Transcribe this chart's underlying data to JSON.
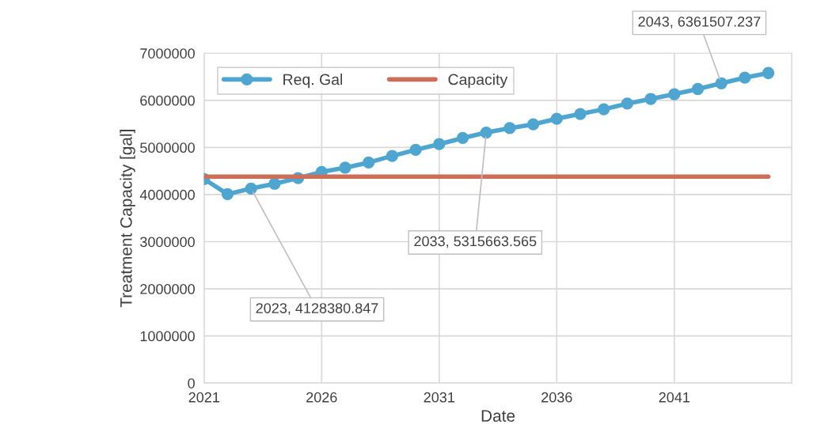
{
  "chart_data": {
    "type": "line",
    "xlabel": "Date",
    "ylabel": "Treatment Capacity [gal]",
    "x": [
      2021,
      2022,
      2023,
      2024,
      2025,
      2026,
      2027,
      2028,
      2029,
      2030,
      2031,
      2032,
      2033,
      2034,
      2035,
      2036,
      2037,
      2038,
      2039,
      2040,
      2041,
      2042,
      2043,
      2044,
      2045
    ],
    "series": [
      {
        "name": "Req. Gal",
        "color": "#4ea6d0",
        "marker": "circle",
        "values": [
          4330000,
          4010000,
          4128380.847,
          4230000,
          4350000,
          4480000,
          4570000,
          4680000,
          4820000,
          4950000,
          5070000,
          5200000,
          5315663.565,
          5410000,
          5490000,
          5610000,
          5710000,
          5810000,
          5930000,
          6030000,
          6130000,
          6240000,
          6361507.237,
          6480000,
          6580000
        ]
      },
      {
        "name": "Capacity",
        "color": "#cd6f58",
        "marker": "none",
        "values": [
          4380000,
          4380000,
          4380000,
          4380000,
          4380000,
          4380000,
          4380000,
          4380000,
          4380000,
          4380000,
          4380000,
          4380000,
          4380000,
          4380000,
          4380000,
          4380000,
          4380000,
          4380000,
          4380000,
          4380000,
          4380000,
          4380000,
          4380000,
          4380000,
          4380000
        ]
      }
    ],
    "annotations": [
      {
        "text": "2023, 4128380.847",
        "x": 2023,
        "y": 4128380.847
      },
      {
        "text": "2033, 5315663.565",
        "x": 2033,
        "y": 5315663.565
      },
      {
        "text": "2043, 6361507.237",
        "x": 2043,
        "y": 6361507.237
      }
    ],
    "xlim": [
      2021,
      2046
    ],
    "xticks": [
      2021,
      2026,
      2031,
      2036,
      2041
    ],
    "ylim": [
      0,
      7000000
    ],
    "yticks": [
      0,
      1000000,
      2000000,
      3000000,
      4000000,
      5000000,
      6000000,
      7000000
    ],
    "grid": true,
    "legend": "top left",
    "line_style": "solid"
  }
}
